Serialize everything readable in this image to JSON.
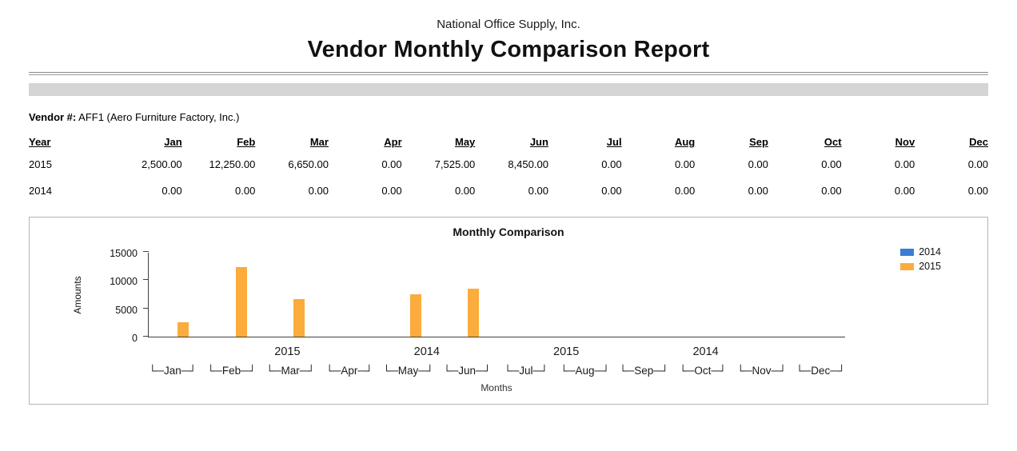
{
  "header": {
    "company": "National Office Supply, Inc.",
    "title": "Vendor Monthly Comparison Report"
  },
  "vendor": {
    "label": "Vendor #:",
    "value": "AFF1 (Aero Furniture Factory, Inc.)"
  },
  "table": {
    "columns": [
      "Year",
      "Jan",
      "Feb",
      "Mar",
      "Apr",
      "May",
      "Jun",
      "Jul",
      "Aug",
      "Sep",
      "Oct",
      "Nov",
      "Dec"
    ],
    "rows": [
      {
        "year": "2015",
        "values": [
          "2,500.00",
          "12,250.00",
          "6,650.00",
          "0.00",
          "7,525.00",
          "8,450.00",
          "0.00",
          "0.00",
          "0.00",
          "0.00",
          "0.00",
          "0.00"
        ]
      },
      {
        "year": "2014",
        "values": [
          "0.00",
          "0.00",
          "0.00",
          "0.00",
          "0.00",
          "0.00",
          "0.00",
          "0.00",
          "0.00",
          "0.00",
          "0.00",
          "0.00"
        ]
      }
    ]
  },
  "chart_data": {
    "type": "bar",
    "title": "Monthly Comparison",
    "categories": [
      "Jan",
      "Feb",
      "Mar",
      "Apr",
      "May",
      "Jun",
      "Jul",
      "Aug",
      "Sep",
      "Oct",
      "Nov",
      "Dec"
    ],
    "series": [
      {
        "name": "2014",
        "color": "#3b7cd5",
        "values": [
          0,
          0,
          0,
          0,
          0,
          0,
          0,
          0,
          0,
          0,
          0,
          0
        ]
      },
      {
        "name": "2015",
        "color": "#fbac3c",
        "values": [
          2500,
          12250,
          6650,
          0,
          7525,
          8450,
          0,
          0,
          0,
          0,
          0,
          0
        ]
      }
    ],
    "xlabel": "Months",
    "ylabel": "Amounts",
    "ylim": [
      0,
      15000
    ],
    "yticks": [
      0,
      5000,
      10000,
      15000
    ],
    "legend_position": "top-right",
    "axis_year_labels": [
      {
        "text": "2015",
        "percent": 20
      },
      {
        "text": "2014",
        "percent": 40
      },
      {
        "text": "2015",
        "percent": 60
      },
      {
        "text": "2014",
        "percent": 80
      }
    ]
  }
}
